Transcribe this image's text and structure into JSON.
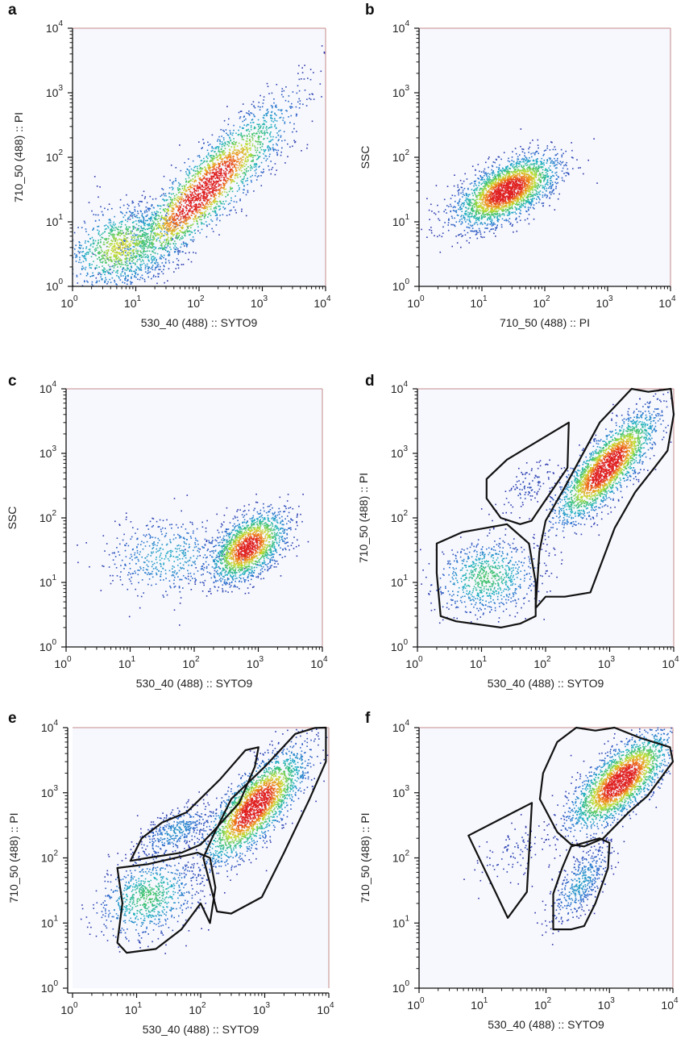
{
  "chart_data": [
    {
      "panel": "a",
      "type": "scatter",
      "xlabel": "530_40 (488) :: SYTO9",
      "ylabel": "710_50 (488) :: PI",
      "xscale": "log",
      "yscale": "log",
      "xlim": [
        1,
        10000
      ],
      "ylim": [
        1,
        10000
      ],
      "tick_labels": [
        "10^0",
        "10^1",
        "10^2",
        "10^3",
        "10^4"
      ],
      "clusters": [
        {
          "center_x": 120,
          "center_y": 30,
          "count": 2600,
          "spread_major_log": 0.9,
          "spread_minor_log": 0.22,
          "angle_deg": 45
        },
        {
          "center_x": 6,
          "center_y": 4,
          "count": 1100,
          "spread_major_log": 0.45,
          "spread_minor_log": 0.3,
          "angle_deg": 20
        }
      ],
      "gates": []
    },
    {
      "panel": "b",
      "type": "scatter",
      "xlabel": "710_50 (488) :: PI",
      "ylabel": "SSC",
      "xscale": "log",
      "yscale": "log",
      "xlim": [
        1,
        10000
      ],
      "ylim": [
        1,
        10000
      ],
      "tick_labels": [
        "10^0",
        "10^1",
        "10^2",
        "10^3",
        "10^4"
      ],
      "clusters": [
        {
          "center_x": 25,
          "center_y": 30,
          "count": 2600,
          "spread_major_log": 0.45,
          "spread_minor_log": 0.2,
          "angle_deg": 28
        }
      ],
      "gates": []
    },
    {
      "panel": "c",
      "type": "scatter",
      "xlabel": "530_40 (488) :: SYTO9",
      "ylabel": "SSC",
      "xscale": "log",
      "yscale": "log",
      "xlim": [
        1,
        10000
      ],
      "ylim": [
        1,
        10000
      ],
      "tick_labels": [
        "10^0",
        "10^1",
        "10^2",
        "10^3",
        "10^4"
      ],
      "clusters": [
        {
          "center_x": 700,
          "center_y": 35,
          "count": 1700,
          "spread_major_log": 0.35,
          "spread_minor_log": 0.2,
          "angle_deg": 40
        },
        {
          "center_x": 40,
          "center_y": 25,
          "count": 500,
          "spread_major_log": 0.5,
          "spread_minor_log": 0.3,
          "angle_deg": 5
        }
      ],
      "gates": []
    },
    {
      "panel": "d",
      "type": "scatter",
      "xlabel": "530_40 (488) :: SYTO9",
      "ylabel": "710_50 (488) :: PI",
      "xscale": "log",
      "yscale": "log",
      "xlim": [
        1,
        10000
      ],
      "ylim": [
        1,
        10000
      ],
      "tick_labels": [
        "10^0",
        "10^1",
        "10^2",
        "10^3",
        "10^4"
      ],
      "clusters": [
        {
          "center_x": 900,
          "center_y": 600,
          "count": 2400,
          "spread_major_log": 0.55,
          "spread_minor_log": 0.18,
          "angle_deg": 48
        },
        {
          "center_x": 12,
          "center_y": 12,
          "count": 800,
          "spread_major_log": 0.4,
          "spread_minor_log": 0.28,
          "angle_deg": 10
        },
        {
          "center_x": 50,
          "center_y": 300,
          "count": 120,
          "spread_major_log": 0.3,
          "spread_minor_log": 0.15,
          "angle_deg": 40
        }
      ],
      "gates": [
        [
          [
            2,
            14
          ],
          [
            2.3,
            3
          ],
          [
            4,
            2.5
          ],
          [
            20,
            2
          ],
          [
            40,
            2.3
          ],
          [
            70,
            3
          ],
          [
            70,
            10
          ],
          [
            55,
            40
          ],
          [
            25,
            80
          ],
          [
            5,
            60
          ],
          [
            2,
            40
          ]
        ],
        [
          [
            70,
            4
          ],
          [
            80,
            30
          ],
          [
            100,
            90
          ],
          [
            200,
            300
          ],
          [
            700,
            3000
          ],
          [
            2200,
            10000
          ],
          [
            4000,
            9000
          ],
          [
            9000,
            10000
          ],
          [
            10000,
            4000
          ],
          [
            8000,
            1100
          ],
          [
            5000,
            600
          ],
          [
            2500,
            250
          ],
          [
            1200,
            70
          ],
          [
            500,
            7
          ],
          [
            200,
            6
          ],
          [
            100,
            6
          ]
        ],
        [
          [
            12,
            400
          ],
          [
            25,
            800
          ],
          [
            230,
            3000
          ],
          [
            220,
            600
          ],
          [
            60,
            90
          ],
          [
            40,
            80
          ],
          [
            20,
            100
          ],
          [
            12,
            200
          ]
        ]
      ]
    },
    {
      "panel": "e",
      "type": "scatter",
      "xlabel": "530_40 (488) :: SYTO9",
      "ylabel": "710_50 (488) :: PI",
      "xscale": "log",
      "yscale": "log",
      "xlim": [
        1,
        10000
      ],
      "ylim": [
        1,
        10000
      ],
      "tick_labels": [
        "10^0",
        "10^1",
        "10^2",
        "10^3",
        "10^4"
      ],
      "clusters": [
        {
          "center_x": 700,
          "center_y": 600,
          "count": 2400,
          "spread_major_log": 0.55,
          "spread_minor_log": 0.2,
          "angle_deg": 48
        },
        {
          "center_x": 15,
          "center_y": 25,
          "count": 800,
          "spread_major_log": 0.4,
          "spread_minor_log": 0.28,
          "angle_deg": 25
        },
        {
          "center_x": 40,
          "center_y": 250,
          "count": 400,
          "spread_major_log": 0.35,
          "spread_minor_log": 0.15,
          "angle_deg": 30
        }
      ],
      "gates": [
        [
          [
            5,
            70
          ],
          [
            6,
            20
          ],
          [
            5,
            5
          ],
          [
            7,
            3.5
          ],
          [
            20,
            4
          ],
          [
            50,
            8
          ],
          [
            100,
            20
          ],
          [
            140,
            10
          ],
          [
            170,
            35
          ],
          [
            140,
            100
          ],
          [
            90,
            120
          ],
          [
            15,
            80
          ]
        ],
        [
          [
            110,
            100
          ],
          [
            150,
            200
          ],
          [
            300,
            800
          ],
          [
            1000,
            2500
          ],
          [
            3000,
            8000
          ],
          [
            6000,
            9900
          ],
          [
            9000,
            10000
          ],
          [
            9000,
            3000
          ],
          [
            5000,
            800
          ],
          [
            2000,
            120
          ],
          [
            900,
            25
          ],
          [
            300,
            14
          ],
          [
            180,
            15
          ],
          [
            140,
            40
          ]
        ],
        [
          [
            8,
            90
          ],
          [
            12,
            200
          ],
          [
            25,
            350
          ],
          [
            60,
            500
          ],
          [
            200,
            1600
          ],
          [
            500,
            4500
          ],
          [
            800,
            5000
          ],
          [
            700,
            2500
          ],
          [
            400,
            700
          ],
          [
            160,
            260
          ],
          [
            100,
            160
          ],
          [
            50,
            120
          ],
          [
            15,
            100
          ]
        ]
      ]
    },
    {
      "panel": "f",
      "type": "scatter",
      "xlabel": "530_40 (488) :: SYTO9",
      "ylabel": "710_50 (488) :: PI",
      "xscale": "log",
      "yscale": "log",
      "xlim": [
        1,
        10000
      ],
      "ylim": [
        1,
        10000
      ],
      "tick_labels": [
        "10^0",
        "10^1",
        "10^2",
        "10^3",
        "10^4"
      ],
      "clusters": [
        {
          "center_x": 1500,
          "center_y": 1500,
          "count": 2400,
          "spread_major_log": 0.5,
          "spread_minor_log": 0.2,
          "angle_deg": 42
        },
        {
          "center_x": 350,
          "center_y": 40,
          "count": 450,
          "spread_major_log": 0.35,
          "spread_minor_log": 0.15,
          "angle_deg": 55
        },
        {
          "center_x": 30,
          "center_y": 120,
          "count": 100,
          "spread_major_log": 0.35,
          "spread_minor_log": 0.2,
          "angle_deg": 35
        }
      ],
      "gates": [
        [
          [
            6,
            220
          ],
          [
            60,
            700
          ],
          [
            50,
            30
          ],
          [
            25,
            12
          ]
        ],
        [
          [
            80,
            800
          ],
          [
            90,
            2000
          ],
          [
            150,
            6000
          ],
          [
            300,
            10000
          ],
          [
            600,
            9000
          ],
          [
            1200,
            10000
          ],
          [
            3000,
            7000
          ],
          [
            9000,
            5000
          ],
          [
            10000,
            3000
          ],
          [
            4000,
            900
          ],
          [
            2000,
            500
          ],
          [
            800,
            200
          ],
          [
            400,
            150
          ],
          [
            250,
            160
          ],
          [
            150,
            250
          ]
        ],
        [
          [
            130,
            8
          ],
          [
            130,
            28
          ],
          [
            180,
            70
          ],
          [
            250,
            150
          ],
          [
            700,
            200
          ],
          [
            1000,
            170
          ],
          [
            950,
            70
          ],
          [
            600,
            20
          ],
          [
            400,
            9
          ],
          [
            250,
            8
          ]
        ]
      ]
    }
  ],
  "style": {
    "plot_background": "#f7f8fd",
    "axis_color": "#111111",
    "frame_color": "#c48a8a",
    "gate_color": "#111111",
    "density_colormap": [
      "#2b2fa8",
      "#2a6fcf",
      "#1fb1c4",
      "#41c36a",
      "#c4df2e",
      "#f08c1c",
      "#e02020"
    ]
  }
}
